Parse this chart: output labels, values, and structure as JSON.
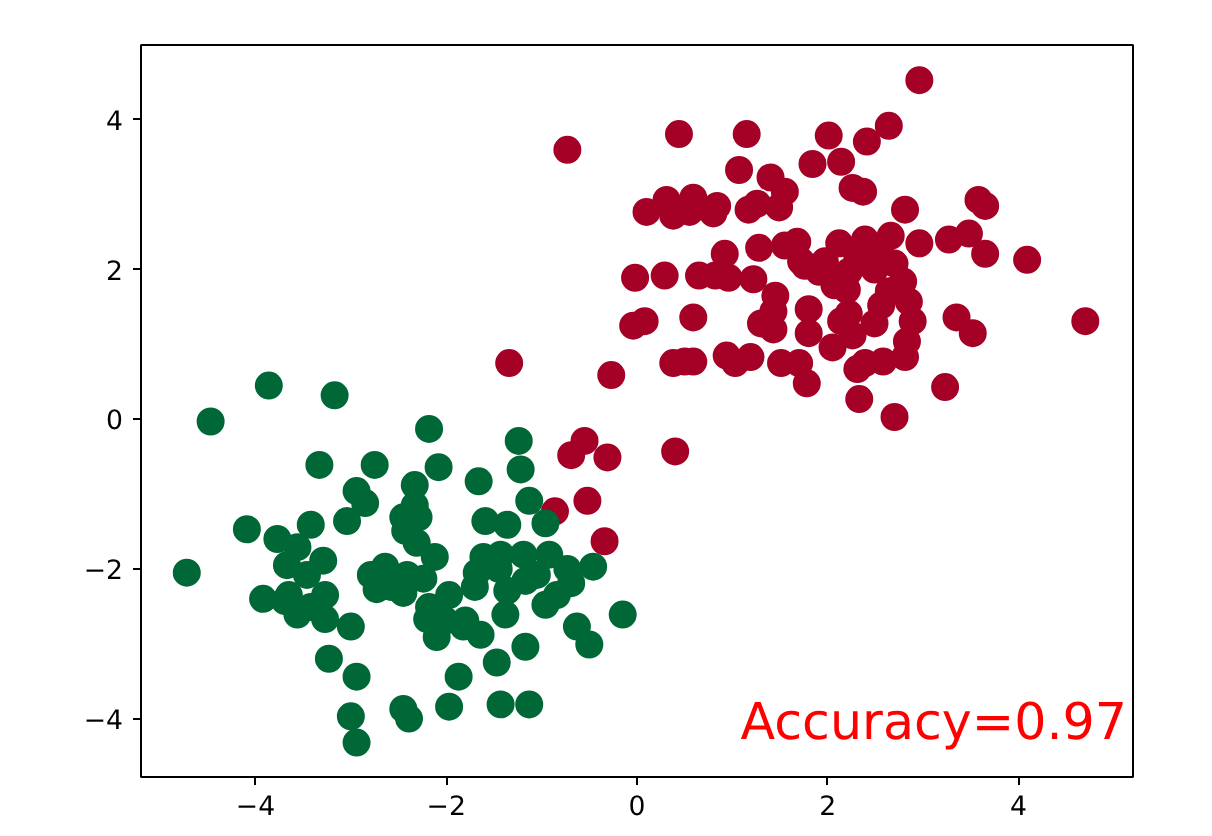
{
  "chart_data": {
    "type": "scatter",
    "xlim": [
      -5.2,
      5.2
    ],
    "ylim": [
      -4.78,
      5.0
    ],
    "xticks": [
      -4,
      -2,
      0,
      2,
      4
    ],
    "yticks": [
      -4,
      -2,
      0,
      2,
      4
    ],
    "grid": false,
    "marker": "circle",
    "annotations": [
      "Accuracy=0.97"
    ],
    "series": [
      {
        "color": "#a50026",
        "x": [
          2.96,
          -0.73,
          0.44,
          1.15,
          2.01,
          2.64,
          2.41,
          1.84,
          2.14,
          1.07,
          1.4,
          1.55,
          2.26,
          2.37,
          2.81,
          3.58,
          3.65,
          0.31,
          0.59,
          0.38,
          0.8,
          1.17,
          1.26,
          1.49,
          0.84,
          0.1,
          0.55,
          0.92,
          1.28,
          1.55,
          1.68,
          2.12,
          2.39,
          2.66,
          2.96,
          3.27,
          3.48,
          3.65,
          4.09,
          -0.02,
          0.29,
          0.65,
          0.82,
          0.96,
          1.22,
          1.72,
          1.97,
          2.31,
          2.56,
          2.7,
          2.79,
          2.85,
          2.89,
          2.83,
          2.81,
          2.58,
          2.39,
          2.31,
          2.26,
          2.22,
          2.2,
          1.76,
          1.91,
          2.22,
          2.49,
          2.64,
          2.56,
          2.49,
          -0.04,
          0.08,
          0.59,
          1.43,
          1.8,
          1.45,
          1.3,
          1.43,
          2.07,
          3.35,
          3.52,
          4.7,
          0.38,
          0.5,
          0.59,
          1.03,
          1.19,
          1.51,
          1.7,
          1.78,
          2.33,
          2.7,
          3.23,
          0.94,
          2.05,
          2.14,
          1.8,
          -0.27,
          -1.34,
          0.4,
          -0.55,
          -0.31,
          -0.69,
          -0.52,
          -0.86,
          -0.34
        ],
        "values": [
          4.53,
          3.6,
          3.81,
          3.81,
          3.79,
          3.92,
          3.71,
          3.41,
          3.44,
          3.33,
          3.23,
          3.04,
          3.09,
          3.04,
          2.8,
          2.93,
          2.85,
          2.93,
          2.96,
          2.72,
          2.75,
          2.8,
          2.88,
          2.83,
          2.85,
          2.77,
          2.77,
          2.21,
          2.29,
          2.32,
          2.37,
          2.35,
          2.4,
          2.45,
          2.35,
          2.4,
          2.48,
          2.21,
          2.13,
          1.89,
          1.92,
          1.92,
          1.92,
          1.89,
          1.87,
          2.11,
          2.11,
          2.16,
          2.19,
          2.08,
          1.84,
          1.57,
          1.31,
          1.04,
          0.83,
          0.77,
          0.75,
          0.67,
          1.12,
          1.41,
          1.73,
          2.05,
          1.97,
          1.97,
          2.0,
          1.71,
          1.52,
          1.28,
          1.25,
          1.31,
          1.36,
          1.44,
          1.47,
          1.65,
          1.28,
          1.2,
          1.79,
          1.36,
          1.15,
          1.31,
          0.75,
          0.77,
          0.77,
          0.75,
          0.83,
          0.75,
          0.75,
          0.48,
          0.27,
          0.03,
          0.43,
          0.85,
          0.96,
          1.31,
          1.15,
          0.59,
          0.75,
          -0.43,
          -0.29,
          -0.51,
          -0.48,
          -1.09,
          -1.23,
          -1.63
        ]
      },
      {
        "color": "#006837",
        "x": [
          -3.86,
          -3.17,
          -4.47,
          -2.18,
          -1.24,
          -3.33,
          -2.75,
          -2.08,
          -1.22,
          -2.94,
          -2.33,
          -1.66,
          -1.13,
          -2.85,
          -2.33,
          -3.04,
          -2.45,
          -2.29,
          -4.09,
          -3.42,
          -1.59,
          -1.36,
          -0.96,
          -2.43,
          -2.31,
          -3.77,
          -3.56,
          -3.67,
          -3.29,
          -3.46,
          -2.12,
          -1.61,
          -1.43,
          -1.19,
          -0.92,
          -0.73,
          -0.46,
          -4.72,
          -2.64,
          -2.41,
          -2.24,
          -1.68,
          -1.45,
          -1.05,
          -0.69,
          -3.92,
          -3.65,
          -3.27,
          -2.73,
          -2.45,
          -1.97,
          -1.7,
          -1.36,
          -0.96,
          -3.56,
          -3.27,
          -3.0,
          -2.2,
          -2.1,
          -1.82,
          -1.64,
          -1.38,
          -1.17,
          -1.47,
          -0.63,
          -0.5,
          -0.15,
          -3.23,
          -2.94,
          -1.87,
          -1.97,
          -1.43,
          -1.13,
          -2.45,
          -2.39,
          -3.0,
          -2.94,
          -2.79,
          -2.58,
          -2.18,
          -2.01,
          -1.8,
          -1.17,
          -0.84,
          -3.69,
          -3.42
        ],
        "values": [
          0.45,
          0.32,
          -0.03,
          -0.13,
          -0.29,
          -0.61,
          -0.61,
          -0.64,
          -0.67,
          -0.96,
          -0.88,
          -0.83,
          -1.09,
          -1.12,
          -1.15,
          -1.36,
          -1.31,
          -1.31,
          -1.47,
          -1.41,
          -1.36,
          -1.41,
          -1.39,
          -1.49,
          -1.65,
          -1.6,
          -1.71,
          -1.95,
          -1.89,
          -2.08,
          -1.84,
          -1.84,
          -1.81,
          -1.81,
          -1.81,
          -2.0,
          -1.97,
          -2.05,
          -1.97,
          -2.08,
          -2.13,
          -2.05,
          -2.0,
          -2.08,
          -2.19,
          -2.4,
          -2.35,
          -2.35,
          -2.27,
          -2.32,
          -2.35,
          -2.24,
          -2.29,
          -2.48,
          -2.61,
          -2.67,
          -2.77,
          -2.67,
          -2.91,
          -2.77,
          -2.88,
          -2.61,
          -3.04,
          -3.25,
          -2.77,
          -3.01,
          -2.61,
          -3.2,
          -3.44,
          -3.44,
          -3.84,
          -3.81,
          -3.81,
          -3.87,
          -4.0,
          -3.97,
          -4.32,
          -2.08,
          -2.24,
          -2.51,
          -2.69,
          -2.69,
          -2.16,
          -2.35,
          -2.43,
          -2.51
        ]
      }
    ]
  }
}
